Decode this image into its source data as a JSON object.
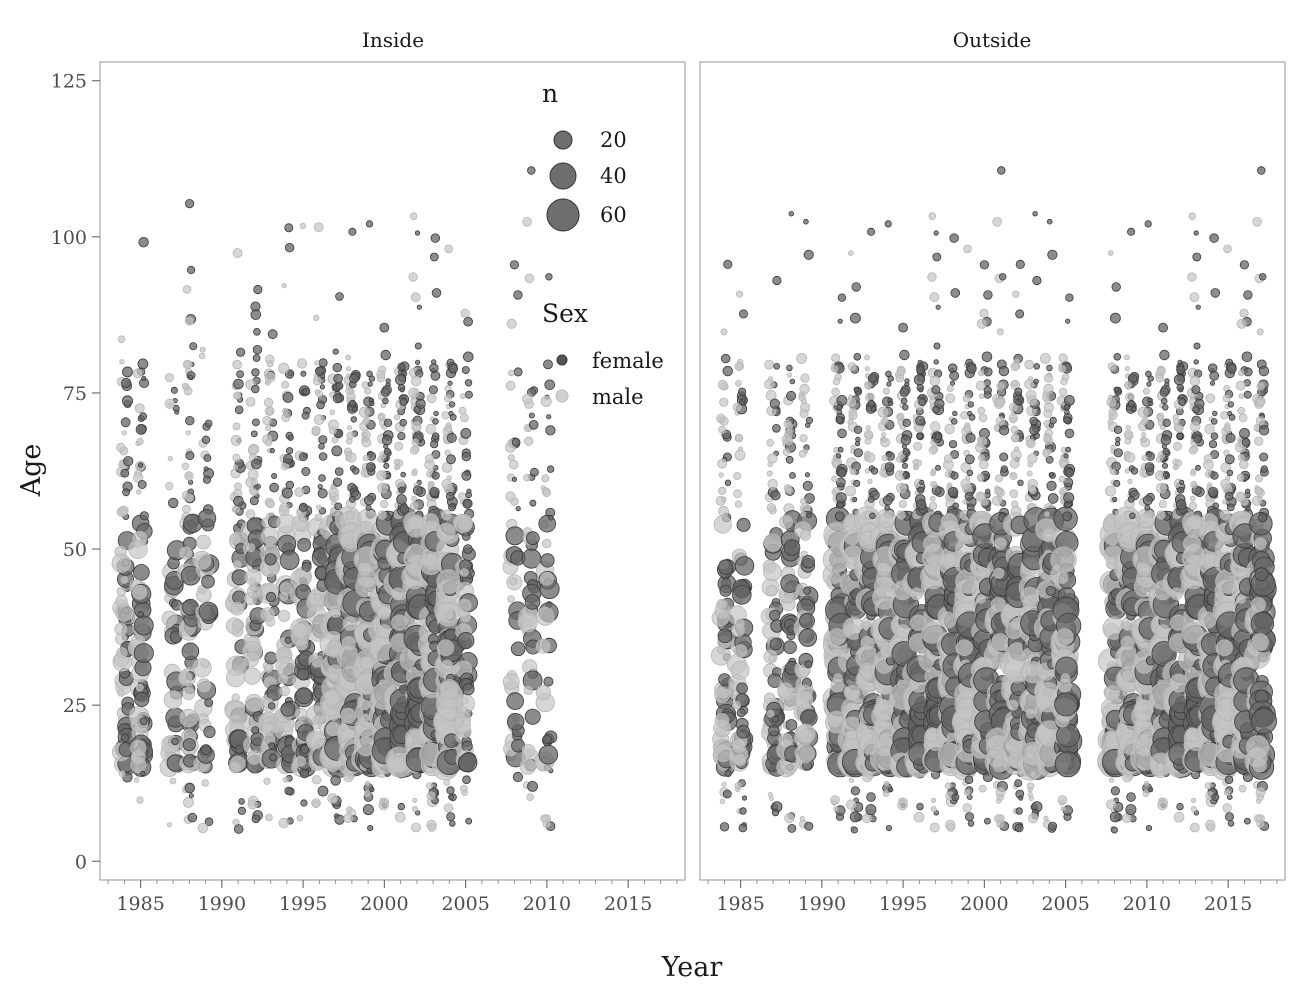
{
  "chart_data": {
    "type": "scatter",
    "facets": [
      "Inside",
      "Outside"
    ],
    "xlabel": "Year",
    "ylabel": "Age",
    "xlim": [
      1982.5,
      2018.5
    ],
    "ylim": [
      -3,
      128
    ],
    "x_ticks": [
      1985,
      1990,
      1995,
      2000,
      2005,
      2010,
      2015
    ],
    "y_ticks": [
      0,
      25,
      50,
      75,
      100,
      125
    ],
    "grid": false,
    "legend": {
      "placement": "inside top-right of Inside panel",
      "size_title": "n",
      "size_entries": [
        {
          "label": "20",
          "value": 20
        },
        {
          "label": "40",
          "value": 40
        },
        {
          "label": "60",
          "value": 60
        }
      ],
      "color_title": "Sex",
      "color_entries": [
        {
          "label": "female",
          "color": "#555555"
        },
        {
          "label": "male",
          "color": "#c8c8c8"
        }
      ]
    },
    "series": [
      {
        "name": "female",
        "color": "#555555"
      },
      {
        "name": "male",
        "color": "#c8c8c8"
      }
    ],
    "year_ranges": {
      "Inside": [
        1984,
        1985,
        1987,
        1988,
        1989,
        1991,
        1992,
        1993,
        1994,
        1995,
        1996,
        1997,
        1998,
        1999,
        2000,
        2001,
        2002,
        2003,
        2004,
        2005,
        2008,
        2009,
        2010
      ],
      "Outside": [
        1984,
        1985,
        1987,
        1988,
        1989,
        1991,
        1992,
        1993,
        1994,
        1995,
        1996,
        1997,
        1998,
        1999,
        2000,
        2001,
        2002,
        2003,
        2004,
        2005,
        2008,
        2009,
        2010,
        2011,
        2012,
        2013,
        2014,
        2015,
        2016,
        2017
      ]
    }
  }
}
